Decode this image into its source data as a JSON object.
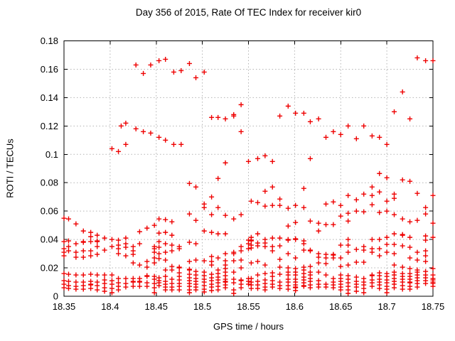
{
  "title": "Day 356 of 2015, Rate Of TEC Index for receiver kir0",
  "chart_data": {
    "type": "scatter",
    "title": "Day 356 of 2015, Rate Of TEC Index for receiver kir0",
    "xlabel": "GPS time / hours",
    "ylabel": "ROTI / TECUs",
    "xlim": [
      18.35,
      18.75
    ],
    "ylim": [
      0,
      0.18
    ],
    "xticks": [
      "18.35",
      "18.4",
      "18.45",
      "18.5",
      "18.55",
      "18.6",
      "18.65",
      "18.7",
      "18.75"
    ],
    "yticks": [
      "0",
      "0.02",
      "0.04",
      "0.06",
      "0.08",
      "0.1",
      "0.12",
      "0.14",
      "0.16",
      "0.18"
    ],
    "grid": "dotted",
    "legend": "none",
    "marker": "plus",
    "marker_color": "#ee0000",
    "grid_color": "#b3b3b3",
    "axis_color": "#000000",
    "background_color": "#ffffff",
    "points_by_time": [
      [
        18.35,
        [
          0.055,
          0.0385,
          0.0335,
          0.031,
          0.0285,
          0.016,
          0.011,
          0.0085,
          0.006
        ]
      ],
      [
        18.355,
        [
          0.0545,
          0.039,
          0.035,
          0.032,
          0.0155,
          0.0105,
          0.0075,
          0.0055
        ]
      ],
      [
        18.363,
        [
          0.051,
          0.037,
          0.031,
          0.0275,
          0.015,
          0.01,
          0.007,
          0.005
        ]
      ],
      [
        18.371,
        [
          0.046,
          0.0385,
          0.038,
          0.032,
          0.0275,
          0.015,
          0.01,
          0.0075,
          0.005
        ]
      ],
      [
        18.379,
        [
          0.045,
          0.042,
          0.0385,
          0.032,
          0.0285,
          0.0155,
          0.0105,
          0.0085,
          0.008,
          0.0055
        ]
      ],
      [
        18.386,
        [
          0.043,
          0.039,
          0.0385,
          0.035,
          0.0295,
          0.015,
          0.01,
          0.0075,
          0.0045
        ]
      ],
      [
        18.394,
        [
          0.041,
          0.0325,
          0.015,
          0.0115,
          0.009,
          0.006,
          0.0035
        ]
      ],
      [
        18.402,
        [
          0.104,
          0.04,
          0.035,
          0.015,
          0.011,
          0.0085,
          0.0055,
          0.0025
        ]
      ],
      [
        18.409,
        [
          0.102,
          0.0395,
          0.036,
          0.0335,
          0.03,
          0.0125,
          0.0095,
          0.007,
          0.0045
        ]
      ],
      [
        18.412,
        [
          0.12
        ]
      ],
      [
        18.417,
        [
          0.122,
          0.107,
          0.041,
          0.037,
          0.0345,
          0.0285,
          0.0125,
          0.009,
          0.0065
        ]
      ],
      [
        18.425,
        [
          0.035,
          0.032,
          0.0295,
          0.0235,
          0.0125,
          0.0105,
          0.01,
          0.007
        ]
      ],
      [
        18.428,
        [
          0.163,
          0.118
        ]
      ],
      [
        18.432,
        [
          0.0455,
          0.037,
          0.022,
          0.0125,
          0.0105,
          0.01,
          0.007
        ]
      ],
      [
        18.436,
        [
          0.157,
          0.116
        ]
      ],
      [
        18.44,
        [
          0.048,
          0.0245,
          0.0205,
          0.0145,
          0.014,
          0.0095,
          0.007
        ]
      ],
      [
        18.444,
        [
          0.163,
          0.115
        ]
      ],
      [
        18.448,
        [
          0.05,
          0.035,
          0.0335,
          0.031,
          0.027,
          0.0235,
          0.014,
          0.012,
          0.009,
          0.006,
          0.0025
        ]
      ],
      [
        18.453,
        [
          0.166,
          0.112,
          0.0545,
          0.0445,
          0.0385,
          0.0345,
          0.03,
          0.0265,
          0.013,
          0.011,
          0.0095,
          0.0075
        ]
      ],
      [
        18.46,
        [
          0.167,
          0.11,
          0.054,
          0.045,
          0.037,
          0.031,
          0.0255,
          0.0185,
          0.014,
          0.0105,
          0.0085,
          0.0065,
          0.0045
        ]
      ],
      [
        18.467,
        [
          0.0525,
          0.043,
          0.036,
          0.032,
          0.021,
          0.0185,
          0.012,
          0.009,
          0.0065,
          0.0045
        ]
      ],
      [
        18.469,
        [
          0.158,
          0.107
        ]
      ],
      [
        18.475,
        [
          0.035,
          0.0335,
          0.0205,
          0.02,
          0.0165,
          0.014,
          0.0115,
          0.009,
          0.007,
          0.0045
        ]
      ],
      [
        18.477,
        [
          0.159,
          0.107
        ]
      ],
      [
        18.486,
        [
          0.164,
          0.0795,
          0.058,
          0.038,
          0.0245,
          0.019,
          0.0185,
          0.0155,
          0.013,
          0.011,
          0.009,
          0.007,
          0.0045,
          0.0025
        ]
      ],
      [
        18.493,
        [
          0.154,
          0.077,
          0.0535,
          0.037,
          0.0255,
          0.0175,
          0.015,
          0.0125,
          0.0105,
          0.0085,
          0.0065,
          0.0045
        ]
      ],
      [
        18.502,
        [
          0.158,
          0.065,
          0.0625,
          0.046,
          0.025,
          0.017,
          0.0145,
          0.012,
          0.01,
          0.0075,
          0.005,
          0.003
        ]
      ],
      [
        18.51,
        [
          0.126,
          0.07,
          0.0575,
          0.045,
          0.028,
          0.0245,
          0.022,
          0.0155,
          0.013,
          0.011,
          0.0085,
          0.0065,
          0.004
        ]
      ],
      [
        18.517,
        [
          0.126,
          0.083,
          0.0625,
          0.044,
          0.027,
          0.0185,
          0.016,
          0.0135,
          0.0115,
          0.0095,
          0.007,
          0.0045
        ]
      ],
      [
        18.525,
        [
          0.125,
          0.094,
          0.057,
          0.044,
          0.03,
          0.025,
          0.022,
          0.0195,
          0.017,
          0.0145,
          0.012,
          0.0105,
          0.01,
          0.008,
          0.006
        ]
      ],
      [
        18.534,
        [
          0.128,
          0.127,
          0.0545,
          0.031,
          0.03,
          0.025,
          0.017,
          0.012,
          0.0095,
          0.0045,
          0.002
        ]
      ],
      [
        18.542,
        [
          0.135,
          0.116,
          0.0575,
          0.035,
          0.032,
          0.0255,
          0.02,
          0.0115,
          0.011,
          0.0085,
          0.006
        ]
      ],
      [
        18.55,
        [
          0.095,
          0.0395,
          0.037,
          0.0335,
          0.0125,
          0.0105,
          0.0085
        ]
      ],
      [
        18.553,
        [
          0.067,
          0.0415,
          0.0395,
          0.039,
          0.036,
          0.034,
          0.0235,
          0.0125,
          0.01,
          0.008,
          0.0055
        ]
      ],
      [
        18.56,
        [
          0.097,
          0.066,
          0.044,
          0.0375,
          0.0355,
          0.0245,
          0.015,
          0.0105,
          0.008,
          0.0055
        ]
      ],
      [
        18.568,
        [
          0.099,
          0.074,
          0.0635,
          0.04,
          0.0375,
          0.035,
          0.022,
          0.016,
          0.0115,
          0.009,
          0.0065,
          0.0045
        ]
      ],
      [
        18.576,
        [
          0.095,
          0.077,
          0.064,
          0.041,
          0.035,
          0.032,
          0.0165,
          0.014,
          0.011,
          0.0085,
          0.0065
        ]
      ],
      [
        18.584,
        [
          0.127,
          0.0685,
          0.064,
          0.041,
          0.0355,
          0.026,
          0.0205,
          0.0155,
          0.01,
          0.0075,
          0.0055
        ]
      ],
      [
        18.593,
        [
          0.134,
          0.062,
          0.0495,
          0.04,
          0.0395,
          0.03,
          0.02,
          0.017,
          0.015,
          0.012,
          0.01,
          0.0075,
          0.005
        ]
      ],
      [
        18.601,
        [
          0.129,
          0.064,
          0.052,
          0.0405,
          0.04,
          0.027,
          0.0195,
          0.017,
          0.015,
          0.012,
          0.01,
          0.008,
          0.0065,
          0.006,
          0.004
        ]
      ],
      [
        18.61,
        [
          0.129,
          0.076,
          0.0625,
          0.039,
          0.037,
          0.0325,
          0.0205,
          0.0185,
          0.016,
          0.0135,
          0.0115,
          0.0095,
          0.0075,
          0.007
        ]
      ],
      [
        18.617,
        [
          0.123,
          0.097,
          0.053,
          0.0325,
          0.032,
          0.021,
          0.017,
          0.015,
          0.0125,
          0.0105,
          0.008,
          0.006
        ]
      ],
      [
        18.626,
        [
          0.125,
          0.0515,
          0.046,
          0.03,
          0.0275,
          0.0235,
          0.017,
          0.011,
          0.0085,
          0.0065
        ]
      ],
      [
        18.634,
        [
          0.112,
          0.065,
          0.0505,
          0.0295,
          0.027,
          0.023,
          0.015,
          0.0085,
          0.0065
        ]
      ],
      [
        18.642,
        [
          0.116,
          0.0665,
          0.0505,
          0.0295,
          0.029,
          0.027,
          0.0125,
          0.01,
          0.008,
          0.006
        ]
      ],
      [
        18.65,
        [
          0.114,
          0.064,
          0.0565,
          0.036,
          0.027,
          0.021,
          0.015,
          0.0125,
          0.0105,
          0.0085,
          0.0065,
          0.0045
        ]
      ],
      [
        18.658,
        [
          0.12,
          0.071,
          0.0585,
          0.053,
          0.04,
          0.036,
          0.031,
          0.022,
          0.0145,
          0.012,
          0.0095,
          0.007,
          0.0045,
          0.002
        ]
      ],
      [
        18.667,
        [
          0.111,
          0.068,
          0.06,
          0.033,
          0.024,
          0.0135,
          0.0105,
          0.0085,
          0.0065,
          0.0035
        ]
      ],
      [
        18.675,
        [
          0.12,
          0.072,
          0.0595,
          0.035,
          0.0325,
          0.024,
          0.0125,
          0.01,
          0.008,
          0.0055,
          0.0025
        ]
      ],
      [
        18.684,
        [
          0.113,
          0.077,
          0.071,
          0.0645,
          0.04,
          0.0335,
          0.031,
          0.015,
          0.0145,
          0.0115,
          0.0095,
          0.007
        ]
      ],
      [
        18.692,
        [
          0.112,
          0.0865,
          0.0735,
          0.059,
          0.04,
          0.0335,
          0.0285,
          0.0165,
          0.0145,
          0.012,
          0.01,
          0.008,
          0.0055
        ]
      ],
      [
        18.7,
        [
          0.107,
          0.0835,
          0.067,
          0.06,
          0.0415,
          0.0365,
          0.031,
          0.016,
          0.014,
          0.0115,
          0.0095,
          0.007,
          0.005,
          0.0025
        ]
      ],
      [
        18.708,
        [
          0.13,
          0.072,
          0.069,
          0.0575,
          0.044,
          0.0365,
          0.03,
          0.022,
          0.017,
          0.015,
          0.0125,
          0.0105,
          0.0085,
          0.006
        ]
      ],
      [
        18.717,
        [
          0.144,
          0.082,
          0.0545,
          0.0435,
          0.043,
          0.0355,
          0.0205,
          0.016,
          0.014,
          0.012,
          0.01,
          0.0075,
          0.005
        ]
      ],
      [
        18.725,
        [
          0.125,
          0.081,
          0.0525,
          0.0415,
          0.0345,
          0.027,
          0.0195,
          0.016,
          0.014,
          0.012,
          0.01,
          0.0095,
          0.007,
          0.005
        ]
      ],
      [
        18.733,
        [
          0.168,
          0.0725,
          0.0535,
          0.031,
          0.0255,
          0.0185,
          0.017,
          0.015,
          0.013,
          0.011,
          0.009,
          0.0065
        ]
      ],
      [
        18.742,
        [
          0.166,
          0.0625,
          0.058,
          0.0425,
          0.0395,
          0.032,
          0.0285,
          0.0245,
          0.0175,
          0.015,
          0.013,
          0.011,
          0.009
        ]
      ],
      [
        18.75,
        [
          0.166,
          0.071,
          0.0515,
          0.0415,
          0.0195,
          0.015,
          0.0125,
          0.0115,
          0.01,
          0.009,
          0.007
        ]
      ]
    ]
  }
}
